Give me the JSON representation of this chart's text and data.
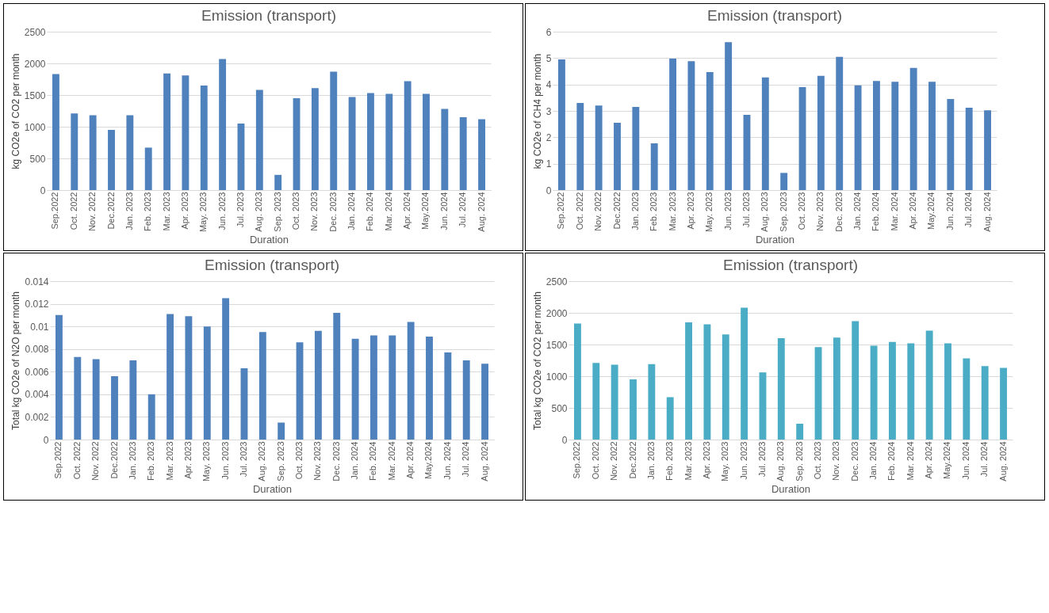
{
  "chart_data": [
    {
      "type": "bar",
      "title": "Emission (transport)",
      "xlabel": "Duration",
      "ylabel": "kg CO2e of CO2 per month",
      "categories": [
        "Sep.2022",
        "Oct. 2022",
        "Nov. 2022",
        "Dec.2022",
        "Jan. 2023",
        "Feb. 2023",
        "Mar. 2023",
        "Apr. 2023",
        "May. 2023",
        "Jun. 2023",
        "Jul. 2023",
        "Aug. 2023",
        "Sep. 2023",
        "Oct. 2023",
        "Nov. 2023",
        "Dec. 2023",
        "Jan. 2024",
        "Feb. 2024",
        "Mar. 2024",
        "Apr. 2024",
        "May.2024",
        "Jun. 2024",
        "Jul. 2024",
        "Aug. 2024"
      ],
      "color": "#4f81bd",
      "values": [
        1830,
        1210,
        1180,
        950,
        1180,
        670,
        1840,
        1810,
        1650,
        2070,
        1050,
        1580,
        240,
        1450,
        1610,
        1870,
        1470,
        1530,
        1520,
        1720,
        1520,
        1280,
        1150,
        1120
      ],
      "ylim": [
        0,
        2500
      ],
      "yticks": [
        0,
        500,
        1000,
        1500,
        2000,
        2500
      ],
      "grid": "y"
    },
    {
      "type": "bar",
      "title": "Emission (transport)",
      "xlabel": "Duration",
      "ylabel": "kg CO2e of CH4 per month",
      "categories": [
        "Sep.2022",
        "Oct. 2022",
        "Nov. 2022",
        "Dec.2022",
        "Jan. 2023",
        "Feb. 2023",
        "Mar. 2023",
        "Apr. 2023",
        "May. 2023",
        "Jun. 2023",
        "Jul. 2023",
        "Aug. 2023",
        "Sep. 2023",
        "Oct. 2023",
        "Nov. 2023",
        "Dec. 2023",
        "Jan. 2024",
        "Feb. 2024",
        "Mar. 2024",
        "Apr. 2024",
        "May.2024",
        "Jun. 2024",
        "Jul. 2024",
        "Aug. 2024"
      ],
      "color": "#4f81bd",
      "values": [
        4.95,
        3.3,
        3.2,
        2.55,
        3.15,
        1.77,
        4.98,
        4.88,
        4.47,
        5.6,
        2.85,
        4.27,
        0.65,
        3.9,
        4.33,
        5.05,
        3.97,
        4.13,
        4.1,
        4.63,
        4.1,
        3.45,
        3.12,
        3.02
      ],
      "ylim": [
        0,
        6
      ],
      "yticks": [
        0,
        1,
        2,
        3,
        4,
        5,
        6
      ],
      "grid": "y"
    },
    {
      "type": "bar",
      "title": "Emission (transport)",
      "xlabel": "Duration",
      "ylabel": "Total kg CO2e of N2O per month",
      "categories": [
        "Sep.2022",
        "Oct. 2022",
        "Nov. 2022",
        "Dec.2022",
        "Jan. 2023",
        "Feb. 2023",
        "Mar. 2023",
        "Apr. 2023",
        "May. 2023",
        "Jun. 2023",
        "Jul. 2023",
        "Aug. 2023",
        "Sep. 2023",
        "Oct. 2023",
        "Nov. 2023",
        "Dec. 2023",
        "Jan. 2024",
        "Feb. 2024",
        "Mar. 2024",
        "Apr. 2024",
        "May.2024",
        "Jun. 2024",
        "Jul. 2024",
        "Aug. 2024"
      ],
      "color": "#4f81bd",
      "values": [
        0.011,
        0.0073,
        0.0071,
        0.0056,
        0.007,
        0.004,
        0.0111,
        0.0109,
        0.01,
        0.0125,
        0.0063,
        0.0095,
        0.0015,
        0.0086,
        0.0096,
        0.0112,
        0.0089,
        0.0092,
        0.0092,
        0.0104,
        0.0091,
        0.0077,
        0.007,
        0.0067
      ],
      "ylim": [
        0,
        0.014
      ],
      "yticks": [
        0,
        0.002,
        0.004,
        0.006,
        0.008,
        0.01,
        0.012,
        0.014
      ],
      "grid": "y"
    },
    {
      "type": "bar",
      "title": "Emission (transport)",
      "xlabel": "Duration",
      "ylabel": "Total kg CO2e of CO2 per month",
      "categories": [
        "Sep.2022",
        "Oct. 2022",
        "Nov. 2022",
        "Dec.2022",
        "Jan. 2023",
        "Feb. 2023",
        "Mar. 2023",
        "Apr. 2023",
        "May. 2023",
        "Jun. 2023",
        "Jul. 2023",
        "Aug. 2023",
        "Sep. 2023",
        "Oct. 2023",
        "Nov. 2023",
        "Dec. 2023",
        "Jan. 2024",
        "Feb. 2024",
        "Mar. 2024",
        "Apr. 2024",
        "May.2024",
        "Jun. 2024",
        "Jul. 2024",
        "Aug. 2024"
      ],
      "color": "#4bacc6",
      "values": [
        1830,
        1210,
        1180,
        950,
        1190,
        670,
        1850,
        1820,
        1660,
        2080,
        1060,
        1600,
        250,
        1460,
        1610,
        1870,
        1480,
        1540,
        1520,
        1720,
        1520,
        1280,
        1160,
        1130
      ],
      "ylim": [
        0,
        2500
      ],
      "yticks": [
        0,
        500,
        1000,
        1500,
        2000,
        2500
      ],
      "grid": "y"
    }
  ]
}
